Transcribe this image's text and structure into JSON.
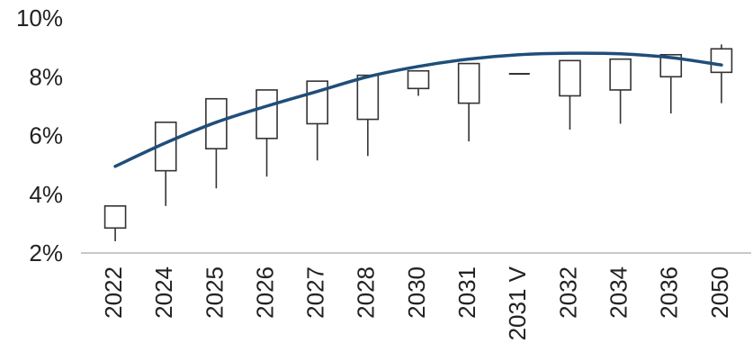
{
  "chart_data": {
    "type": "candlestick",
    "title": "",
    "xlabel": "",
    "ylabel": "",
    "ylim": [
      2,
      10
    ],
    "y_ticks": [
      "2%",
      "4%",
      "6%",
      "8%",
      "10%"
    ],
    "y_tick_values": [
      2,
      4,
      6,
      8,
      10
    ],
    "grid": false,
    "legend": "none",
    "categories": [
      "2022",
      "2024",
      "2025",
      "2026",
      "2027",
      "2028",
      "2030",
      "2031",
      "2031 V",
      "2032",
      "2034",
      "2036",
      "2050"
    ],
    "boxes": [
      {
        "box_low": 2.85,
        "box_high": 3.6,
        "whisker_low": 2.4,
        "whisker_high": 3.6
      },
      {
        "box_low": 4.8,
        "box_high": 6.45,
        "whisker_low": 3.6,
        "whisker_high": 6.45
      },
      {
        "box_low": 5.55,
        "box_high": 7.25,
        "whisker_low": 4.2,
        "whisker_high": 7.25
      },
      {
        "box_low": 5.9,
        "box_high": 7.55,
        "whisker_low": 4.6,
        "whisker_high": 7.55
      },
      {
        "box_low": 6.4,
        "box_high": 7.85,
        "whisker_low": 5.15,
        "whisker_high": 7.85
      },
      {
        "box_low": 6.55,
        "box_high": 8.05,
        "whisker_low": 5.3,
        "whisker_high": 8.05
      },
      {
        "box_low": 7.6,
        "box_high": 8.2,
        "whisker_low": 7.35,
        "whisker_high": 8.2
      },
      {
        "box_low": 7.1,
        "box_high": 8.45,
        "whisker_low": 5.8,
        "whisker_high": 8.45
      },
      {
        "box_low": 8.1,
        "box_high": 8.1,
        "whisker_low": 8.1,
        "whisker_high": 8.1
      },
      {
        "box_low": 7.35,
        "box_high": 8.55,
        "whisker_low": 6.2,
        "whisker_high": 8.55
      },
      {
        "box_low": 7.55,
        "box_high": 8.6,
        "whisker_low": 6.4,
        "whisker_high": 8.6
      },
      {
        "box_low": 8.0,
        "box_high": 8.75,
        "whisker_low": 6.75,
        "whisker_high": 8.75
      },
      {
        "box_low": 8.15,
        "box_high": 8.95,
        "whisker_low": 7.1,
        "whisker_high": 9.1
      }
    ],
    "trend": {
      "values": [
        4.95,
        5.75,
        6.45,
        7.0,
        7.5,
        8.0,
        8.35,
        8.6,
        8.75,
        8.8,
        8.78,
        8.65,
        8.4
      ]
    },
    "colors": {
      "trend_line": "#1f4e79",
      "box_stroke": "#333333",
      "box_fill": "#ffffff",
      "axis": "#c8c8c8",
      "text": "#222222"
    }
  }
}
